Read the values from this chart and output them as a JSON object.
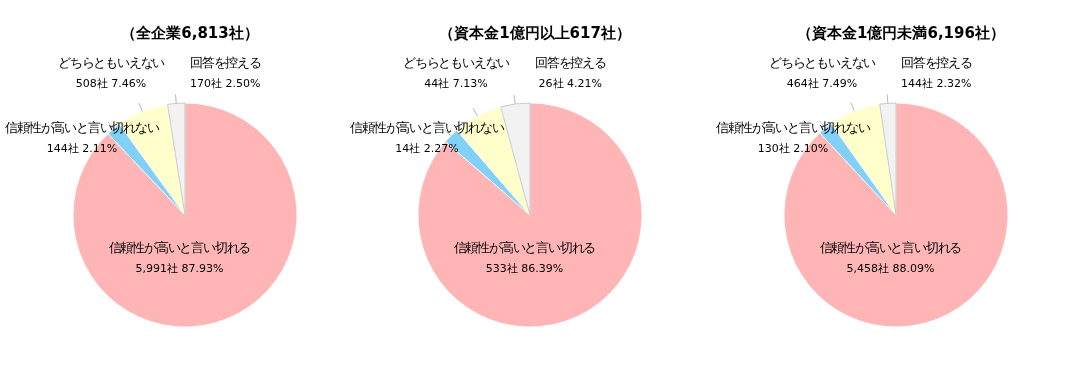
{
  "chart_data": [
    {
      "type": "pie",
      "title": "（全企業6,813社）",
      "categories": [
        "信頼性が高いと言い切れる",
        "信頼性が高いと言い切れない",
        "どちらともいえない",
        "回答を控える"
      ],
      "values": [
        5991,
        144,
        508,
        170
      ],
      "value_labels": [
        "5,991社 87.93%",
        "144社 2.11%",
        "508社 7.46%",
        "170社 2.50%"
      ],
      "colors": [
        "#ffb5b5",
        "#80d0f8",
        "#ffffcc",
        "#f2f2f2"
      ]
    },
    {
      "type": "pie",
      "title": "（資本金1億円以上617社）",
      "categories": [
        "信頼性が高いと言い切れる",
        "信頼性が高いと言い切れない",
        "どちらともいえない",
        "回答を控える"
      ],
      "values": [
        533,
        14,
        44,
        26
      ],
      "value_labels": [
        "533社 86.39%",
        "14社 2.27%",
        "44社 7.13%",
        "26社 4.21%"
      ],
      "colors": [
        "#ffb5b5",
        "#80d0f8",
        "#ffffcc",
        "#f2f2f2"
      ]
    },
    {
      "type": "pie",
      "title": "（資本金1億円未満6,196社）",
      "categories": [
        "信頼性が高いと言い切れる",
        "信頼性が高いと言い切れない",
        "どちらともいえない",
        "回答を控える"
      ],
      "values": [
        5458,
        130,
        464,
        144
      ],
      "value_labels": [
        "5,458社 88.09%",
        "130社 2.10%",
        "464社 7.49%",
        "144社 2.32%"
      ],
      "colors": [
        "#ffb5b5",
        "#80d0f8",
        "#ffffcc",
        "#f2f2f2"
      ]
    }
  ]
}
